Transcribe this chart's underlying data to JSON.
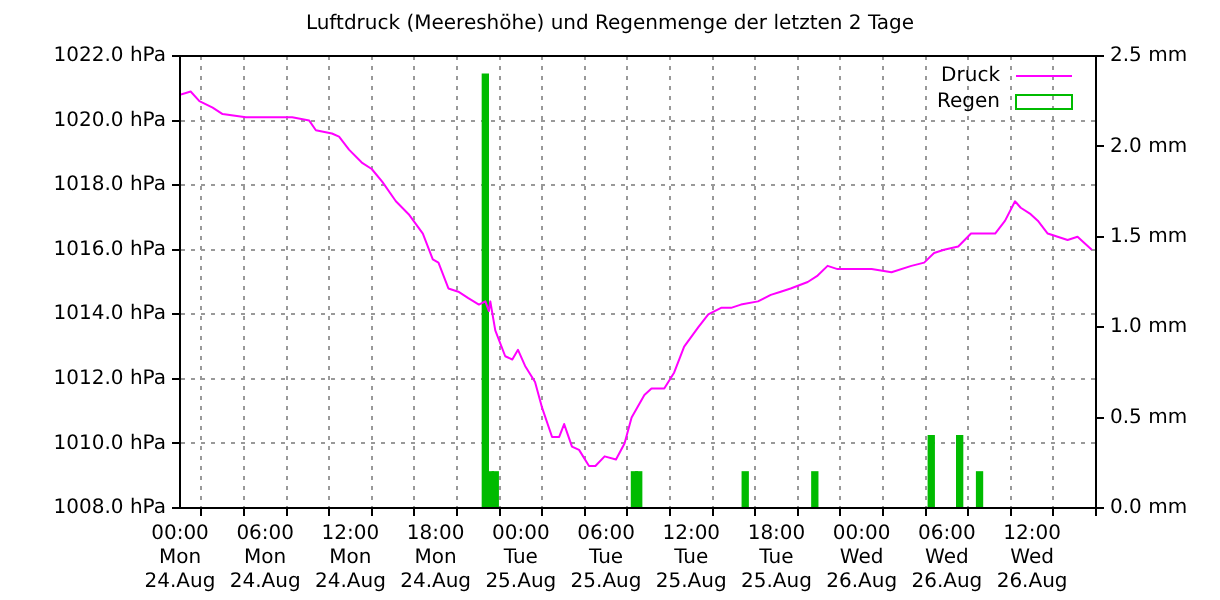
{
  "chart_data": {
    "type": "line",
    "title": "Luftdruck (Meereshöhe) und Regenmenge der letzten 2 Tage",
    "series": [
      {
        "name": "Druck",
        "color": "#ff00ff",
        "x": [
          "--08-24T00:00",
          "--08-24T00:45",
          "--08-24T01:22",
          "--08-24T02:18",
          "--08-24T03:00",
          "--08-24T04:38",
          "--08-24T06:03",
          "--08-24T07:27",
          "--08-24T07:54",
          "--08-24T09:06",
          "--08-24T09:34",
          "--08-24T10:42",
          "--08-24T11:12",
          "--08-24T11:54",
          "--08-24T12:48",
          "--08-24T13:30",
          "--08-24T14:15",
          "--08-24T15:12",
          "--08-24T16:06",
          "--08-24T17:06",
          "--08-24T17:48",
          "--08-24T18:12",
          "--08-24T18:54",
          "--08-24T19:36",
          "--08-24T20:18",
          "--08-24T21:03",
          "--08-24T21:30",
          "--08-24T21:45",
          "--08-24T21:51",
          "--08-24T22:12",
          "--08-24T22:54",
          "--08-24T23:24",
          "--08-24T23:48",
          "--08-25T00:18",
          "--08-25T01:00",
          "--08-25T01:30",
          "--08-25T02:12",
          "--08-25T02:42",
          "--08-25T03:03",
          "--08-25T03:36",
          "--08-25T04:06",
          "--08-25T04:48",
          "--08-25T05:15",
          "--08-25T05:54",
          "--08-25T06:42",
          "--08-25T07:18",
          "--08-25T07:48",
          "--08-25T08:42",
          "--08-25T09:12",
          "--08-25T10:06",
          "--08-25T10:48",
          "--08-25T11:30",
          "--08-25T12:30",
          "--08-25T13:12",
          "--08-25T14:06",
          "--08-25T14:48",
          "--08-25T15:30",
          "--08-25T16:42",
          "--08-25T17:36",
          "--08-25T18:18",
          "--08-25T19:00",
          "--08-25T20:12",
          "--08-25T20:54",
          "--08-25T21:36",
          "--08-25T22:18",
          "--08-25T23:18",
          "--08-26T00:42",
          "--08-26T02:06",
          "--08-26T03:30",
          "--08-26T04:24",
          "--08-26T05:06",
          "--08-26T05:48",
          "--08-26T06:48",
          "--08-26T07:42",
          "--08-26T08:42",
          "--08-26T09:24",
          "--08-26T10:06",
          "--08-26T10:48",
          "--08-26T11:12",
          "--08-26T11:54",
          "--08-26T12:24",
          "--08-26T13:06",
          "--08-26T13:48",
          "--08-26T14:30",
          "--08-26T15:12",
          "--08-26T16:12"
        ],
        "values": [
          1020.8,
          1020.9,
          1020.6,
          1020.4,
          1020.2,
          1020.1,
          1020.1,
          1020.1,
          1020.1,
          1020.0,
          1019.7,
          1019.6,
          1019.5,
          1019.1,
          1018.7,
          1018.5,
          1018.1,
          1017.5,
          1017.1,
          1016.5,
          1015.7,
          1015.6,
          1014.8,
          1014.7,
          1014.5,
          1014.3,
          1014.4,
          1014.1,
          1014.4,
          1013.5,
          1012.7,
          1012.6,
          1012.9,
          1012.4,
          1011.9,
          1011.1,
          1010.2,
          1010.2,
          1010.6,
          1009.9,
          1009.8,
          1009.3,
          1009.3,
          1009.6,
          1009.5,
          1010.0,
          1010.8,
          1011.5,
          1011.7,
          1011.7,
          1012.2,
          1013.0,
          1013.6,
          1014.0,
          1014.2,
          1014.2,
          1014.3,
          1014.4,
          1014.6,
          1014.7,
          1014.8,
          1015.0,
          1015.2,
          1015.5,
          1015.4,
          1015.4,
          1015.4,
          1015.3,
          1015.5,
          1015.6,
          1015.9,
          1016.0,
          1016.1,
          1016.5,
          1016.5,
          1016.5,
          1016.9,
          1017.5,
          1017.3,
          1017.1,
          1016.9,
          1016.5,
          1016.4,
          1016.3,
          1016.4,
          1016.0
        ]
      },
      {
        "name": "Regen",
        "type": "bar",
        "axis": "y2",
        "color": "#00bb00",
        "x": [
          "--08-24T21:30",
          "--08-24T21:51",
          "--08-24T22:12",
          "--08-25T08:00",
          "--08-25T08:18",
          "--08-25T15:48",
          "--08-25T20:42",
          "--08-26T04:54",
          "--08-26T06:54",
          "--08-26T08:18"
        ],
        "values": [
          2.4,
          0.2,
          0.2,
          0.2,
          0.2,
          0.2,
          0.2,
          0.4,
          0.4,
          0.2
        ]
      }
    ],
    "xlim": [
      "--08-24T00:00",
      "--08-26T16:30"
    ],
    "xticks": [
      {
        "value": "--08-24T00:00",
        "label": "00:00\nMon\n24.Aug"
      },
      {
        "value": "--08-24T06:00",
        "label": "06:00\nMon\n24.Aug"
      },
      {
        "value": "--08-24T12:00",
        "label": "12:00\nMon\n24.Aug"
      },
      {
        "value": "--08-24T18:00",
        "label": "18:00\nMon\n24.Aug"
      },
      {
        "value": "--08-25T00:00",
        "label": "00:00\nTue\n25.Aug"
      },
      {
        "value": "--08-25T06:00",
        "label": "06:00\nTue\n25.Aug"
      },
      {
        "value": "--08-25T12:00",
        "label": "12:00\nTue\n25.Aug"
      },
      {
        "value": "--08-25T18:00",
        "label": "18:00\nTue\n25.Aug"
      },
      {
        "value": "--08-26T00:00",
        "label": "00:00\nWed\n26.Aug"
      },
      {
        "value": "--08-26T06:00",
        "label": "06:00\nWed\n26.Aug"
      },
      {
        "value": "--08-26T12:00",
        "label": "12:00\nWed\n26.Aug"
      }
    ],
    "ylim": [
      1008,
      1022
    ],
    "yticks": [
      {
        "value": 1008,
        "label": "1008.0 hPa"
      },
      {
        "value": 1010,
        "label": "1010.0 hPa"
      },
      {
        "value": 1012,
        "label": "1012.0 hPa"
      },
      {
        "value": 1014,
        "label": "1014.0 hPa"
      },
      {
        "value": 1016,
        "label": "1016.0 hPa"
      },
      {
        "value": 1018,
        "label": "1018.0 hPa"
      },
      {
        "value": 1020,
        "label": "1020.0 hPa"
      },
      {
        "value": 1022,
        "label": "1022.0 hPa"
      }
    ],
    "y2lim": [
      0,
      2.5
    ],
    "y2ticks": [
      {
        "value": 0,
        "label": "0.0 mm"
      },
      {
        "value": 0.5,
        "label": "0.5 mm"
      },
      {
        "value": 1,
        "label": "1.0 mm"
      },
      {
        "value": 1.5,
        "label": "1.5 mm"
      },
      {
        "value": 2,
        "label": "2.0 mm"
      },
      {
        "value": 2.5,
        "label": "2.5 mm"
      }
    ],
    "grid": true,
    "legend": "top right",
    "marker": "none",
    "line_style": "solid"
  }
}
